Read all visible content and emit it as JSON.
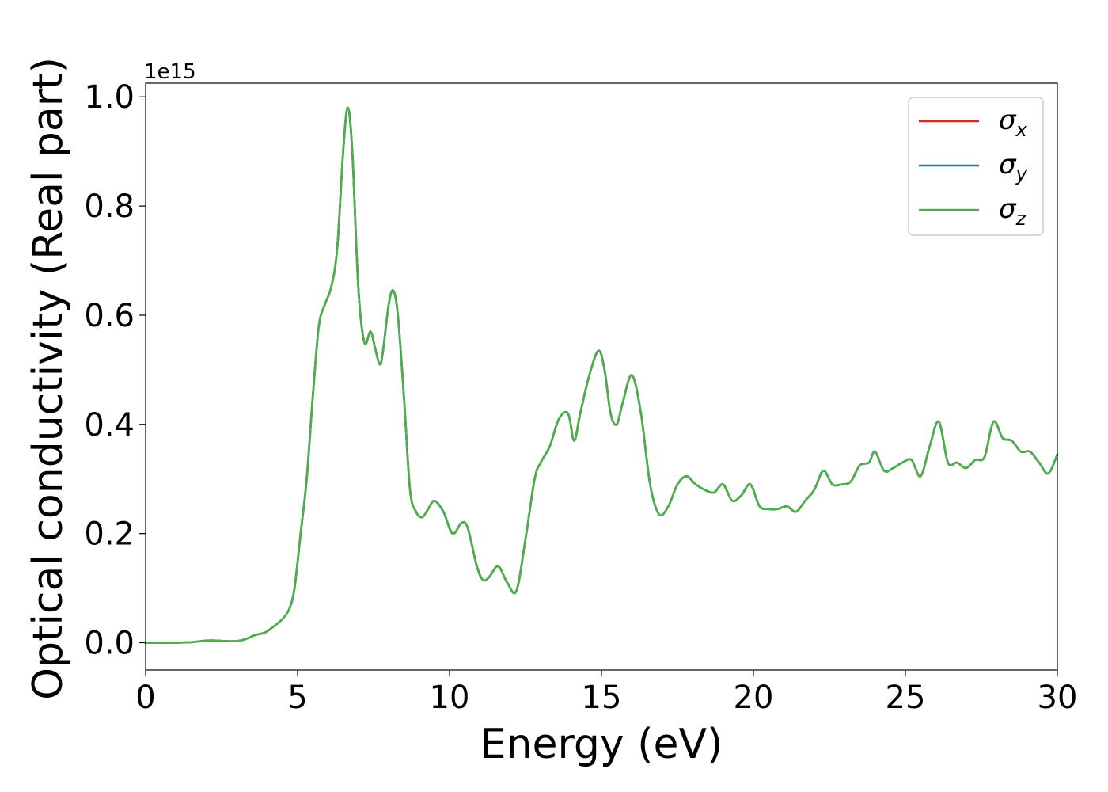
{
  "chart_data": {
    "type": "line",
    "xlabel": "Energy (eV)",
    "ylabel": "Optical conductivity (Real part)",
    "y_offset_text": "1e15",
    "y_scale_factor": 1000000000000000.0,
    "xlim": [
      0,
      30
    ],
    "ylim": [
      -0.05,
      1.025
    ],
    "xticks": [
      0,
      5,
      10,
      15,
      20,
      25,
      30
    ],
    "yticks": [
      0.0,
      0.2,
      0.4,
      0.6,
      0.8,
      1.0
    ],
    "xtick_labels": [
      "0",
      "5",
      "10",
      "15",
      "20",
      "25",
      "30"
    ],
    "ytick_labels": [
      "0.0",
      "0.2",
      "0.4",
      "0.6",
      "0.8",
      "1.0"
    ],
    "grid": false,
    "legend_position": "top-right",
    "x": [
      0,
      0.5,
      1.0,
      1.5,
      2.0,
      2.3,
      2.6,
      3.0,
      3.3,
      3.6,
      3.9,
      4.1,
      4.4,
      4.6,
      4.75,
      4.9,
      5.1,
      5.3,
      5.5,
      5.7,
      5.9,
      6.1,
      6.3,
      6.5,
      6.65,
      6.8,
      7.0,
      7.2,
      7.4,
      7.55,
      7.7,
      7.8,
      8.0,
      8.15,
      8.3,
      8.5,
      8.7,
      8.9,
      9.1,
      9.3,
      9.5,
      9.8,
      10.1,
      10.4,
      10.6,
      10.9,
      11.1,
      11.3,
      11.6,
      11.9,
      12.2,
      12.5,
      12.8,
      13.0,
      13.3,
      13.6,
      13.9,
      14.1,
      14.3,
      14.6,
      14.9,
      15.1,
      15.3,
      15.5,
      15.7,
      16.0,
      16.3,
      16.6,
      16.9,
      17.2,
      17.5,
      17.8,
      18.1,
      18.4,
      18.7,
      19.0,
      19.3,
      19.6,
      19.9,
      20.2,
      20.5,
      20.8,
      21.1,
      21.4,
      21.7,
      22.0,
      22.3,
      22.6,
      22.9,
      23.2,
      23.5,
      23.8,
      24.0,
      24.3,
      24.6,
      24.9,
      25.2,
      25.5,
      25.8,
      26.1,
      26.4,
      26.7,
      27.0,
      27.3,
      27.6,
      27.9,
      28.2,
      28.5,
      28.8,
      29.1,
      29.4,
      29.7,
      30.0
    ],
    "series": [
      {
        "name": "σx",
        "label_base": "σ",
        "label_sub": "x",
        "color": "#d62728",
        "values": [
          0.0,
          0.0,
          0.0,
          0.001,
          0.004,
          0.004,
          0.003,
          0.003,
          0.007,
          0.014,
          0.018,
          0.025,
          0.038,
          0.05,
          0.065,
          0.1,
          0.2,
          0.3,
          0.45,
          0.58,
          0.62,
          0.65,
          0.72,
          0.9,
          0.98,
          0.9,
          0.65,
          0.55,
          0.57,
          0.54,
          0.51,
          0.53,
          0.62,
          0.645,
          0.6,
          0.45,
          0.28,
          0.24,
          0.23,
          0.245,
          0.26,
          0.24,
          0.2,
          0.22,
          0.21,
          0.14,
          0.115,
          0.12,
          0.14,
          0.11,
          0.095,
          0.19,
          0.3,
          0.33,
          0.36,
          0.41,
          0.42,
          0.37,
          0.42,
          0.49,
          0.535,
          0.5,
          0.42,
          0.4,
          0.44,
          0.49,
          0.42,
          0.29,
          0.235,
          0.25,
          0.29,
          0.305,
          0.29,
          0.28,
          0.275,
          0.29,
          0.26,
          0.27,
          0.29,
          0.25,
          0.245,
          0.245,
          0.25,
          0.24,
          0.26,
          0.28,
          0.315,
          0.29,
          0.29,
          0.295,
          0.325,
          0.33,
          0.35,
          0.315,
          0.32,
          0.33,
          0.335,
          0.305,
          0.36,
          0.405,
          0.33,
          0.33,
          0.32,
          0.335,
          0.34,
          0.405,
          0.375,
          0.37,
          0.35,
          0.35,
          0.33,
          0.31,
          0.345
        ]
      },
      {
        "name": "σy",
        "label_base": "σ",
        "label_sub": "y",
        "color": "#1f77b4",
        "values": [
          0.0,
          0.0,
          0.0,
          0.001,
          0.004,
          0.004,
          0.003,
          0.003,
          0.007,
          0.014,
          0.018,
          0.025,
          0.038,
          0.05,
          0.065,
          0.1,
          0.2,
          0.3,
          0.45,
          0.58,
          0.62,
          0.65,
          0.72,
          0.9,
          0.98,
          0.9,
          0.65,
          0.55,
          0.57,
          0.54,
          0.51,
          0.53,
          0.62,
          0.645,
          0.6,
          0.45,
          0.28,
          0.24,
          0.23,
          0.245,
          0.26,
          0.24,
          0.2,
          0.22,
          0.21,
          0.14,
          0.115,
          0.12,
          0.14,
          0.11,
          0.095,
          0.19,
          0.3,
          0.33,
          0.36,
          0.41,
          0.42,
          0.37,
          0.42,
          0.49,
          0.535,
          0.5,
          0.42,
          0.4,
          0.44,
          0.49,
          0.42,
          0.29,
          0.235,
          0.25,
          0.29,
          0.305,
          0.29,
          0.28,
          0.275,
          0.29,
          0.26,
          0.27,
          0.29,
          0.25,
          0.245,
          0.245,
          0.25,
          0.24,
          0.26,
          0.28,
          0.315,
          0.29,
          0.29,
          0.295,
          0.325,
          0.33,
          0.35,
          0.315,
          0.32,
          0.33,
          0.335,
          0.305,
          0.36,
          0.405,
          0.33,
          0.33,
          0.32,
          0.335,
          0.34,
          0.405,
          0.375,
          0.37,
          0.35,
          0.35,
          0.33,
          0.31,
          0.345
        ]
      },
      {
        "name": "σz",
        "label_base": "σ",
        "label_sub": "z",
        "color": "#4daf4a",
        "values": [
          0.0,
          0.0,
          0.0,
          0.001,
          0.004,
          0.004,
          0.003,
          0.003,
          0.007,
          0.014,
          0.018,
          0.025,
          0.038,
          0.05,
          0.065,
          0.1,
          0.2,
          0.3,
          0.45,
          0.58,
          0.62,
          0.65,
          0.72,
          0.9,
          0.98,
          0.9,
          0.65,
          0.55,
          0.57,
          0.54,
          0.51,
          0.53,
          0.62,
          0.645,
          0.6,
          0.45,
          0.28,
          0.24,
          0.23,
          0.245,
          0.26,
          0.24,
          0.2,
          0.22,
          0.21,
          0.14,
          0.115,
          0.12,
          0.14,
          0.11,
          0.095,
          0.19,
          0.3,
          0.33,
          0.36,
          0.41,
          0.42,
          0.37,
          0.42,
          0.49,
          0.535,
          0.5,
          0.42,
          0.4,
          0.44,
          0.49,
          0.42,
          0.29,
          0.235,
          0.25,
          0.29,
          0.305,
          0.29,
          0.28,
          0.275,
          0.29,
          0.26,
          0.27,
          0.29,
          0.25,
          0.245,
          0.245,
          0.25,
          0.24,
          0.26,
          0.28,
          0.315,
          0.29,
          0.29,
          0.295,
          0.325,
          0.33,
          0.35,
          0.315,
          0.32,
          0.33,
          0.335,
          0.305,
          0.36,
          0.405,
          0.33,
          0.33,
          0.32,
          0.335,
          0.34,
          0.405,
          0.375,
          0.37,
          0.35,
          0.35,
          0.33,
          0.31,
          0.345
        ]
      }
    ]
  }
}
